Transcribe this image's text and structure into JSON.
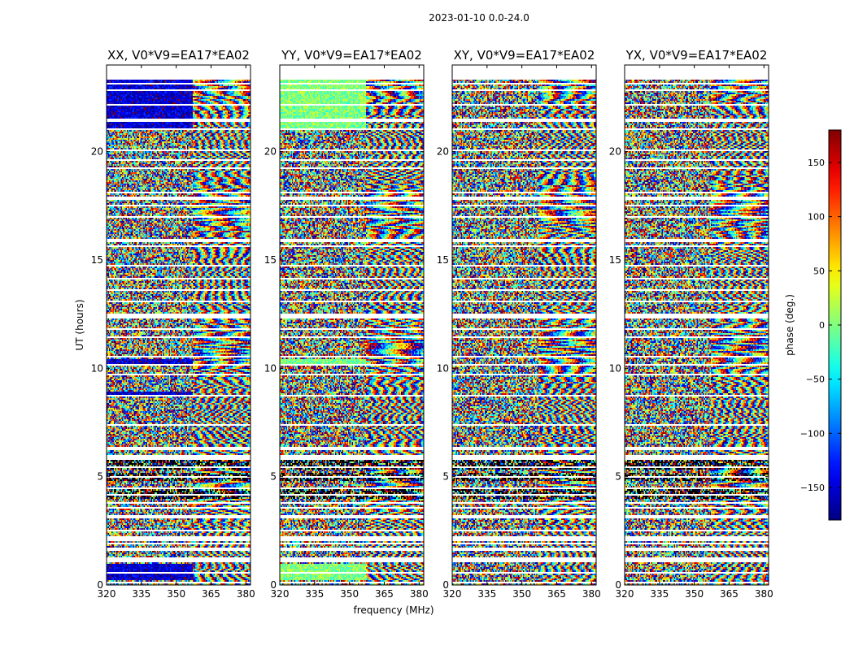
{
  "chart_data": {
    "type": "heatmap",
    "suptitle": "2023-01-10 0.0-24.0",
    "xlabel": "frequency (MHz)",
    "ylabel": "UT (hours)",
    "xlim": [
      320,
      382
    ],
    "ylim": [
      0,
      24
    ],
    "xticks": [
      320,
      335,
      350,
      365,
      380
    ],
    "yticks": [
      0,
      5,
      10,
      15,
      20
    ],
    "colorbar": {
      "label": "phase (deg.)",
      "colormap": "jet",
      "range": [
        -180,
        180
      ],
      "ticks": [
        -150,
        -100,
        -50,
        0,
        50,
        100,
        150
      ],
      "tick_labels": [
        "−150",
        "−100",
        "−50",
        "0",
        "50",
        "100",
        "150"
      ]
    },
    "panels": [
      {
        "title": "XX, V0*V9=EA17*EA02",
        "polarization": "XX"
      },
      {
        "title": "YY, V0*V9=EA17*EA02",
        "polarization": "YY"
      },
      {
        "title": "XY, V0*V9=EA17*EA02",
        "polarization": "XY"
      },
      {
        "title": "YX, V0*V9=EA17*EA02",
        "polarization": "YX"
      }
    ],
    "flagged_gaps_hours": [
      [
        0.05,
        0.12
      ],
      [
        0.55,
        0.62
      ],
      [
        1.05,
        1.25
      ],
      [
        1.6,
        1.7
      ],
      [
        1.9,
        1.95
      ],
      [
        2.05,
        2.25
      ],
      [
        2.5,
        2.55
      ],
      [
        3.05,
        3.25
      ],
      [
        3.55,
        3.6
      ],
      [
        3.75,
        3.8
      ],
      [
        4.15,
        4.2
      ],
      [
        4.45,
        4.5
      ],
      [
        4.95,
        5.0
      ],
      [
        5.4,
        5.45
      ],
      [
        5.8,
        6.0
      ],
      [
        6.25,
        6.4
      ],
      [
        6.8,
        6.85
      ],
      [
        7.35,
        7.4
      ],
      [
        7.55,
        7.6
      ],
      [
        7.85,
        7.9
      ],
      [
        8.3,
        8.35
      ],
      [
        8.7,
        8.8
      ],
      [
        9.2,
        9.25
      ],
      [
        9.7,
        9.75
      ],
      [
        10.15,
        10.2
      ],
      [
        10.5,
        10.6
      ],
      [
        11.0,
        11.05
      ],
      [
        11.4,
        11.5
      ],
      [
        11.8,
        11.85
      ],
      [
        12.3,
        12.5
      ],
      [
        13.05,
        13.1
      ],
      [
        13.55,
        13.65
      ],
      [
        14.1,
        14.15
      ],
      [
        14.7,
        14.75
      ],
      [
        15.2,
        15.25
      ],
      [
        15.6,
        15.65
      ],
      [
        15.85,
        15.95
      ],
      [
        16.4,
        16.45
      ],
      [
        16.95,
        17.0
      ],
      [
        17.5,
        17.55
      ],
      [
        17.8,
        17.9
      ],
      [
        18.05,
        18.15
      ],
      [
        18.65,
        18.7
      ],
      [
        19.2,
        19.25
      ],
      [
        19.6,
        19.65
      ],
      [
        20.05,
        20.1
      ],
      [
        20.6,
        20.65
      ],
      [
        21.0,
        21.1
      ],
      [
        21.4,
        21.55
      ],
      [
        22.1,
        22.2
      ],
      [
        22.55,
        22.6
      ],
      [
        22.8,
        22.85
      ],
      [
        23.1,
        23.15
      ],
      [
        23.35,
        24.0
      ]
    ],
    "dark_bands_hours": [
      [
        4.0,
        4.4
      ],
      [
        4.8,
        5.2
      ],
      [
        5.3,
        5.8
      ]
    ],
    "panel_patterns": {
      "XX": "low-frequency half coherent near -150 deg (blue) during 0.2-1.0, 6.2-6.3, 8.7-8.9, 10.2-10.4, 21.0-23.3 UT; noisy elsewhere; fringing above 355 MHz",
      "YY": "low-frequency half coherent near 0 deg (green) during 0.2-1.0, 6.2-6.3, 10.2-10.4, 21.0-23.3 UT; noisy elsewhere; fringing above 355 MHz",
      "XY": "noisy phases throughout with fringing above 355 MHz",
      "YX": "noisy phases throughout with fringing above 355 MHz"
    }
  }
}
